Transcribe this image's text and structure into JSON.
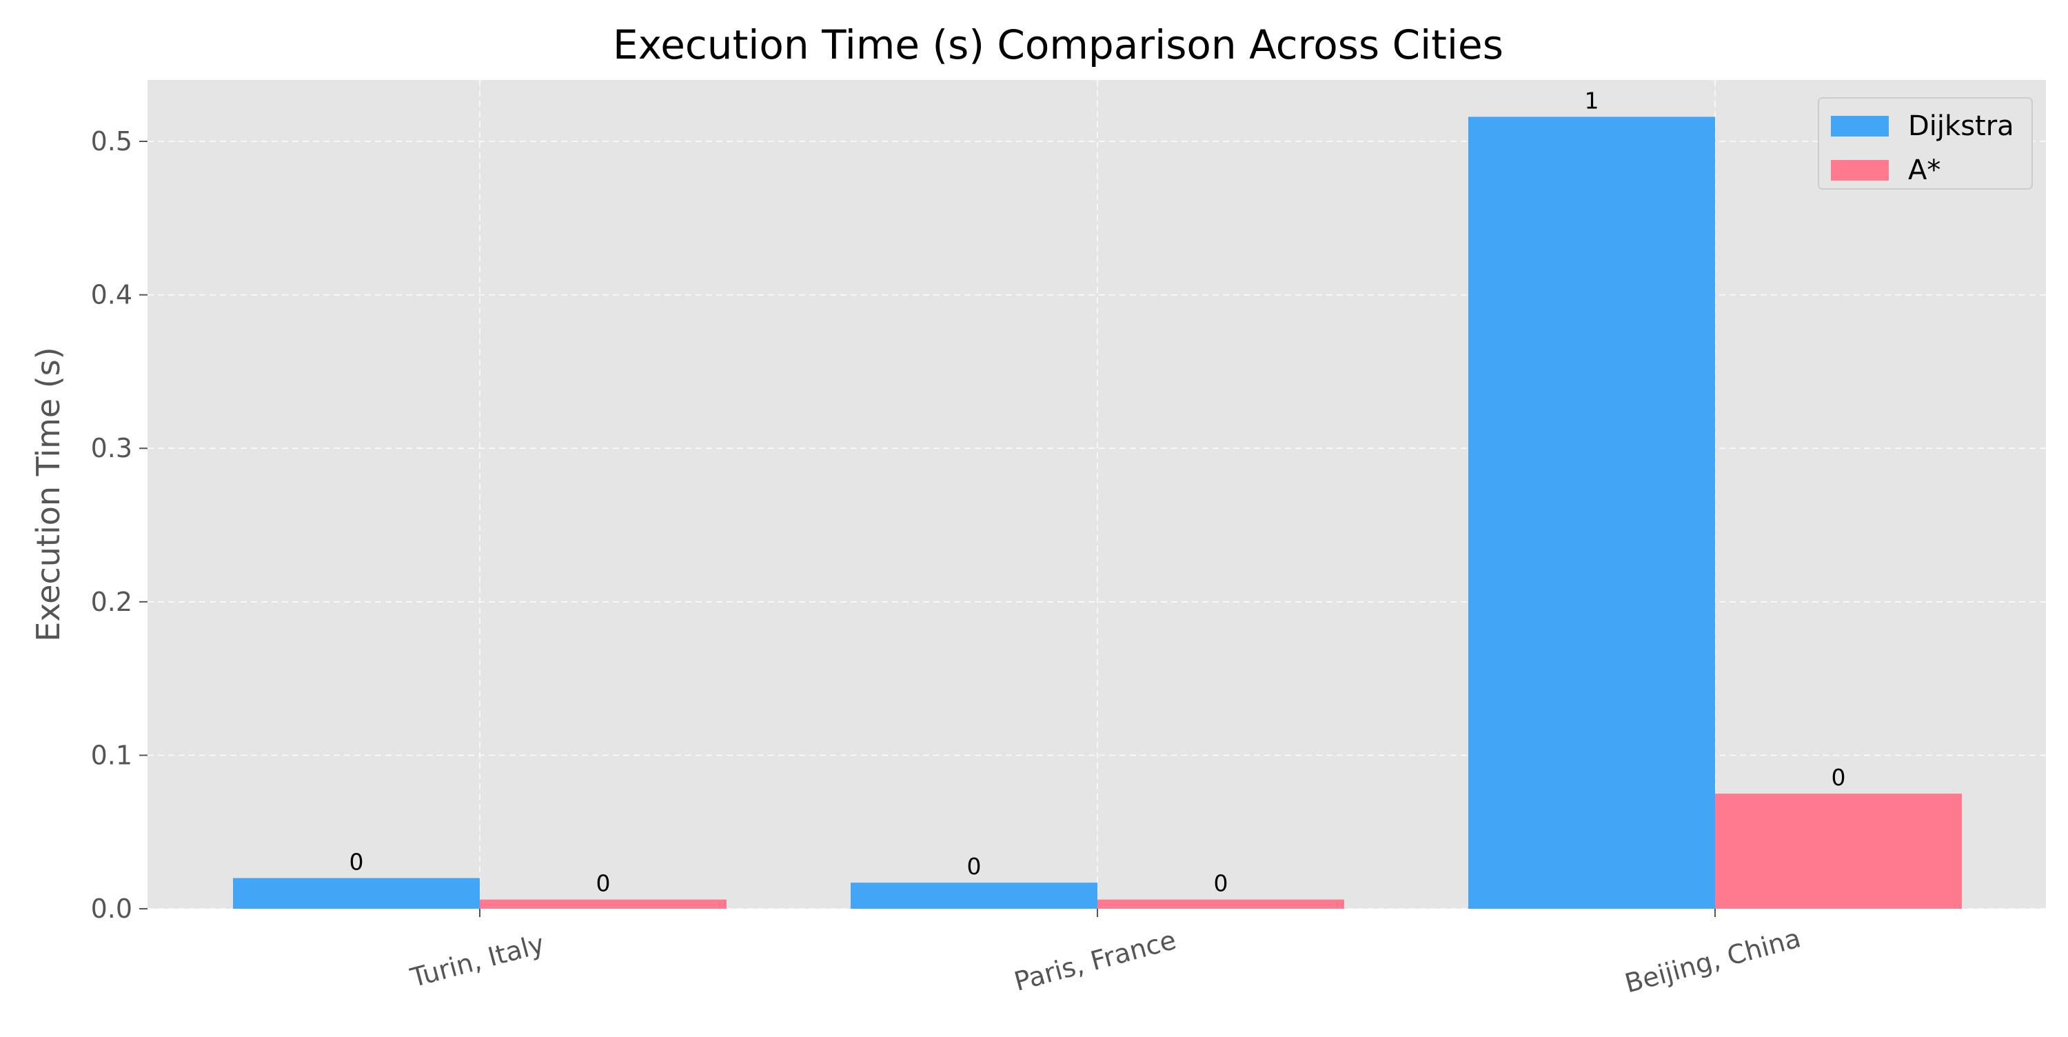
{
  "chart_data": {
    "type": "bar",
    "title": "Execution Time (s) Comparison Across Cities",
    "xlabel": "",
    "ylabel": "Execution Time (s)",
    "categories": [
      "Turin, Italy",
      "Paris, France",
      "Beijing, China"
    ],
    "series": [
      {
        "name": "Dijkstra",
        "color": "#42a5f5",
        "values": [
          0.02,
          0.017,
          0.516
        ],
        "value_labels": [
          "0",
          "0",
          "1"
        ]
      },
      {
        "name": "A*",
        "color": "#ff7a8f",
        "values": [
          0.006,
          0.006,
          0.075
        ],
        "value_labels": [
          "0",
          "0",
          "0"
        ]
      }
    ],
    "ylim": [
      0,
      0.54
    ],
    "yticks": [
      0.0,
      0.1,
      0.2,
      0.3,
      0.4,
      0.5
    ],
    "ytick_labels": [
      "0.0",
      "0.1",
      "0.2",
      "0.3",
      "0.4",
      "0.5"
    ],
    "grid": true,
    "legend_position": "top-right",
    "background_color": "#e5e5e5"
  }
}
